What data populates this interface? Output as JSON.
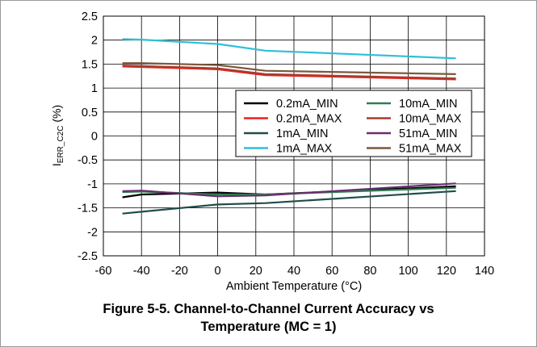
{
  "caption": {
    "line1": "Figure 5-5. Channel-to-Channel Current Accuracy vs",
    "line2": "Temperature (MC = 1)"
  },
  "chart_data": {
    "type": "line",
    "title": "",
    "xlabel": "Ambient Temperature (°C)",
    "ylabel": {
      "main": "I",
      "sub": "ERR_C2C",
      "suffix": " (%)"
    },
    "xlim": [
      -60,
      140
    ],
    "ylim": [
      -2.5,
      2.5
    ],
    "xticks": [
      -60,
      -40,
      -20,
      0,
      20,
      40,
      60,
      80,
      100,
      120,
      140
    ],
    "yticks": [
      2.5,
      2,
      1.5,
      1,
      0.5,
      0,
      -0.5,
      -1,
      -1.5,
      -2,
      -2.5
    ],
    "ytick_labels": [
      "2.5",
      "2",
      "1.5",
      "1",
      "0.5",
      "0",
      "-0.5",
      "-1",
      "-1.5",
      "-2",
      "-2.5"
    ],
    "grid": true,
    "legend_position": "right, middle",
    "series": [
      {
        "name": "0.2mA_MIN",
        "color": "#000000",
        "x": [
          -50,
          -40,
          0,
          25,
          125
        ],
        "y": [
          -1.28,
          -1.22,
          -1.18,
          -1.22,
          -1.05
        ]
      },
      {
        "name": "0.2mA_MAX",
        "color": "#e8231d",
        "x": [
          -50,
          -40,
          0,
          25,
          125
        ],
        "y": [
          1.45,
          1.44,
          1.39,
          1.27,
          1.18
        ]
      },
      {
        "name": "1mA_MIN",
        "color": "#1f4e4a",
        "x": [
          -50,
          -40,
          0,
          25,
          125
        ],
        "y": [
          -1.62,
          -1.58,
          -1.43,
          -1.4,
          -1.15
        ]
      },
      {
        "name": "1mA_MAX",
        "color": "#2ebfd8",
        "x": [
          -50,
          -40,
          0,
          25,
          125
        ],
        "y": [
          2.02,
          2.01,
          1.92,
          1.78,
          1.62
        ]
      },
      {
        "name": "10mA_MIN",
        "color": "#2e7d52",
        "x": [
          -50,
          -40,
          0,
          25,
          125
        ],
        "y": [
          -1.17,
          -1.16,
          -1.22,
          -1.22,
          -1.08
        ]
      },
      {
        "name": "10mA_MAX",
        "color": "#a83a2e",
        "x": [
          -50,
          -40,
          0,
          25,
          125
        ],
        "y": [
          1.47,
          1.46,
          1.41,
          1.29,
          1.2
        ]
      },
      {
        "name": "51mA_MIN",
        "color": "#6a2d6e",
        "x": [
          -50,
          -40,
          0,
          25,
          125
        ],
        "y": [
          -1.15,
          -1.14,
          -1.26,
          -1.24,
          -0.99
        ]
      },
      {
        "name": "51mA_MAX",
        "color": "#7a5a3c",
        "x": [
          -50,
          -40,
          0,
          25,
          125
        ],
        "y": [
          1.52,
          1.52,
          1.48,
          1.36,
          1.29
        ]
      }
    ]
  }
}
